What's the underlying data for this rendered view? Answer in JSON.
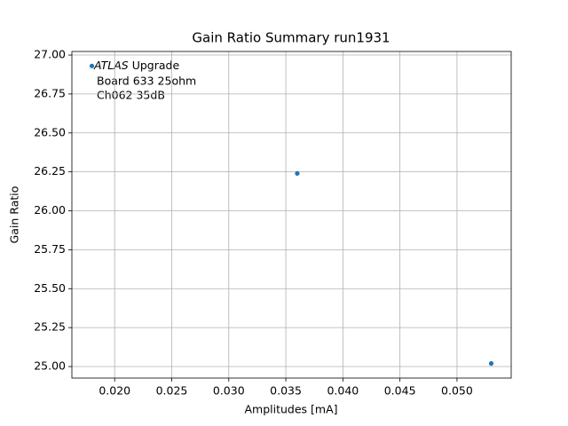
{
  "chart_data": {
    "type": "scatter",
    "title": "Gain Ratio Summary run1931",
    "x_label": "Amplitudes [mA]",
    "y_label": "Gain Ratio",
    "annotations": [
      "ATLAS",
      "Upgrade",
      "Board 633 25ohm",
      "Ch062 35dB"
    ],
    "x": [
      0.018,
      0.036,
      0.053
    ],
    "series": [
      {
        "name": "Gain Ratio",
        "color": "#1f77b4",
        "values": [
          26.93,
          26.24,
          25.02
        ]
      }
    ],
    "xlim": [
      0.01625,
      0.05475
    ],
    "ylim": [
      24.926,
      27.023
    ],
    "xticks": [
      {
        "value": 0.02,
        "label": "0.020"
      },
      {
        "value": 0.025,
        "label": "0.025"
      },
      {
        "value": 0.03,
        "label": "0.030"
      },
      {
        "value": 0.035,
        "label": "0.035"
      },
      {
        "value": 0.04,
        "label": "0.040"
      },
      {
        "value": 0.045,
        "label": "0.045"
      },
      {
        "value": 0.05,
        "label": "0.050"
      }
    ],
    "yticks": [
      {
        "value": 25.0,
        "label": "25.00"
      },
      {
        "value": 25.25,
        "label": "25.25"
      },
      {
        "value": 25.5,
        "label": "25.50"
      },
      {
        "value": 25.75,
        "label": "25.75"
      },
      {
        "value": 26.0,
        "label": "26.00"
      },
      {
        "value": 26.25,
        "label": "26.25"
      },
      {
        "value": 26.5,
        "label": "26.50"
      },
      {
        "value": 26.75,
        "label": "26.75"
      },
      {
        "value": 27.0,
        "label": "27.00"
      }
    ],
    "grid": true
  }
}
